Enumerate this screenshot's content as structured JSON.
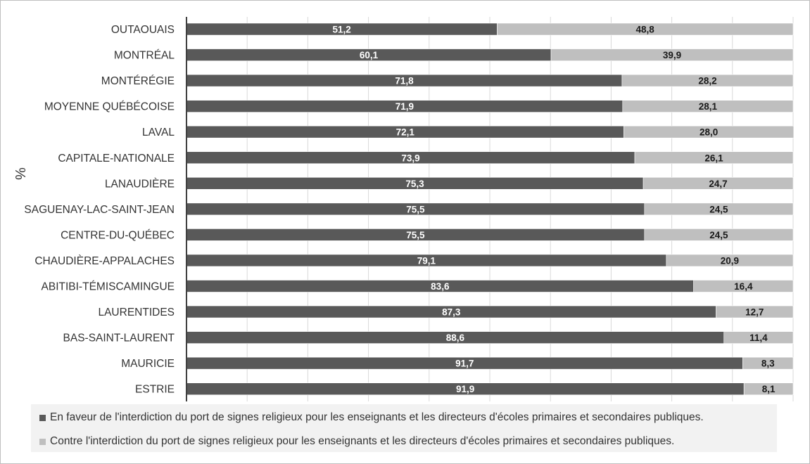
{
  "chart_data": {
    "type": "bar",
    "orientation": "horizontal",
    "stacked": true,
    "y_unit_label": "%",
    "categories": [
      "OUTAOUAIS",
      "MONTRÉAL",
      "MONTÉRÉGIE",
      "MOYENNE QUÉBÉCOISE",
      "LAVAL",
      "CAPITALE-NATIONALE",
      "LANAUDIÈRE",
      "SAGUENAY-LAC-SAINT-JEAN",
      "CENTRE-DU-QUÉBEC",
      "CHAUDIÈRE-APPALACHES",
      "ABITIBI-TÉMISCAMINGUE",
      "LAURENTIDES",
      "BAS-SAINT-LAURENT",
      "MAURICIE",
      "ESTRIE"
    ],
    "series": [
      {
        "name": "En faveur de l'interdiction du port de signes religieux pour les enseignants et les directeurs d'écoles primaires et secondaires publiques.",
        "color": "#595959",
        "values": [
          51.2,
          60.1,
          71.8,
          71.9,
          72.1,
          73.9,
          75.3,
          75.5,
          75.5,
          79.1,
          83.6,
          87.3,
          88.6,
          91.7,
          91.9
        ],
        "labels": [
          "51,2",
          "60,1",
          "71,8",
          "71,9",
          "72,1",
          "73,9",
          "75,3",
          "75,5",
          "75,5",
          "79,1",
          "83,6",
          "87,3",
          "88,6",
          "91,7",
          "91,9"
        ]
      },
      {
        "name": "Contre l'interdiction du port de signes religieux pour les enseignants et les directeurs d'écoles primaires et secondaires publiques.",
        "color": "#bfbfbf",
        "values": [
          48.8,
          39.9,
          28.2,
          28.1,
          28.0,
          26.1,
          24.7,
          24.5,
          24.5,
          20.9,
          16.4,
          12.7,
          11.4,
          8.3,
          8.1
        ],
        "labels": [
          "48,8",
          "39,9",
          "28,2",
          "28,1",
          "28,0",
          "26,1",
          "24,7",
          "24,5",
          "24,5",
          "20,9",
          "16,4",
          "12,7",
          "11,4",
          "8,3",
          "8,1"
        ]
      }
    ],
    "xlim": [
      0,
      100
    ],
    "grid": true,
    "legend_position": "bottom"
  }
}
